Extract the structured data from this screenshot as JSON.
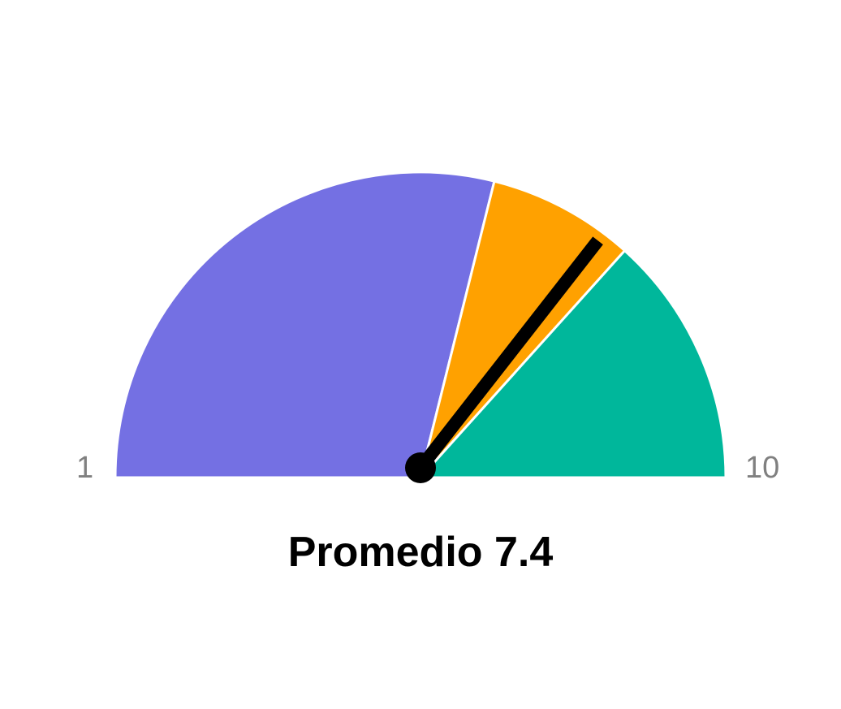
{
  "chart_data": {
    "type": "gauge",
    "min": 1,
    "max": 10,
    "min_label": "1",
    "max_label": "10",
    "value": 7.4,
    "caption": "Promedio 7.4",
    "segments": [
      {
        "from": 1,
        "to": 6.2,
        "color": "#7470E3"
      },
      {
        "from": 6.2,
        "to": 7.6,
        "color": "#FFA100"
      },
      {
        "from": 7.6,
        "to": 10,
        "color": "#00B79B"
      }
    ],
    "needle_color": "#000000",
    "separator_color": "#ffffff"
  }
}
